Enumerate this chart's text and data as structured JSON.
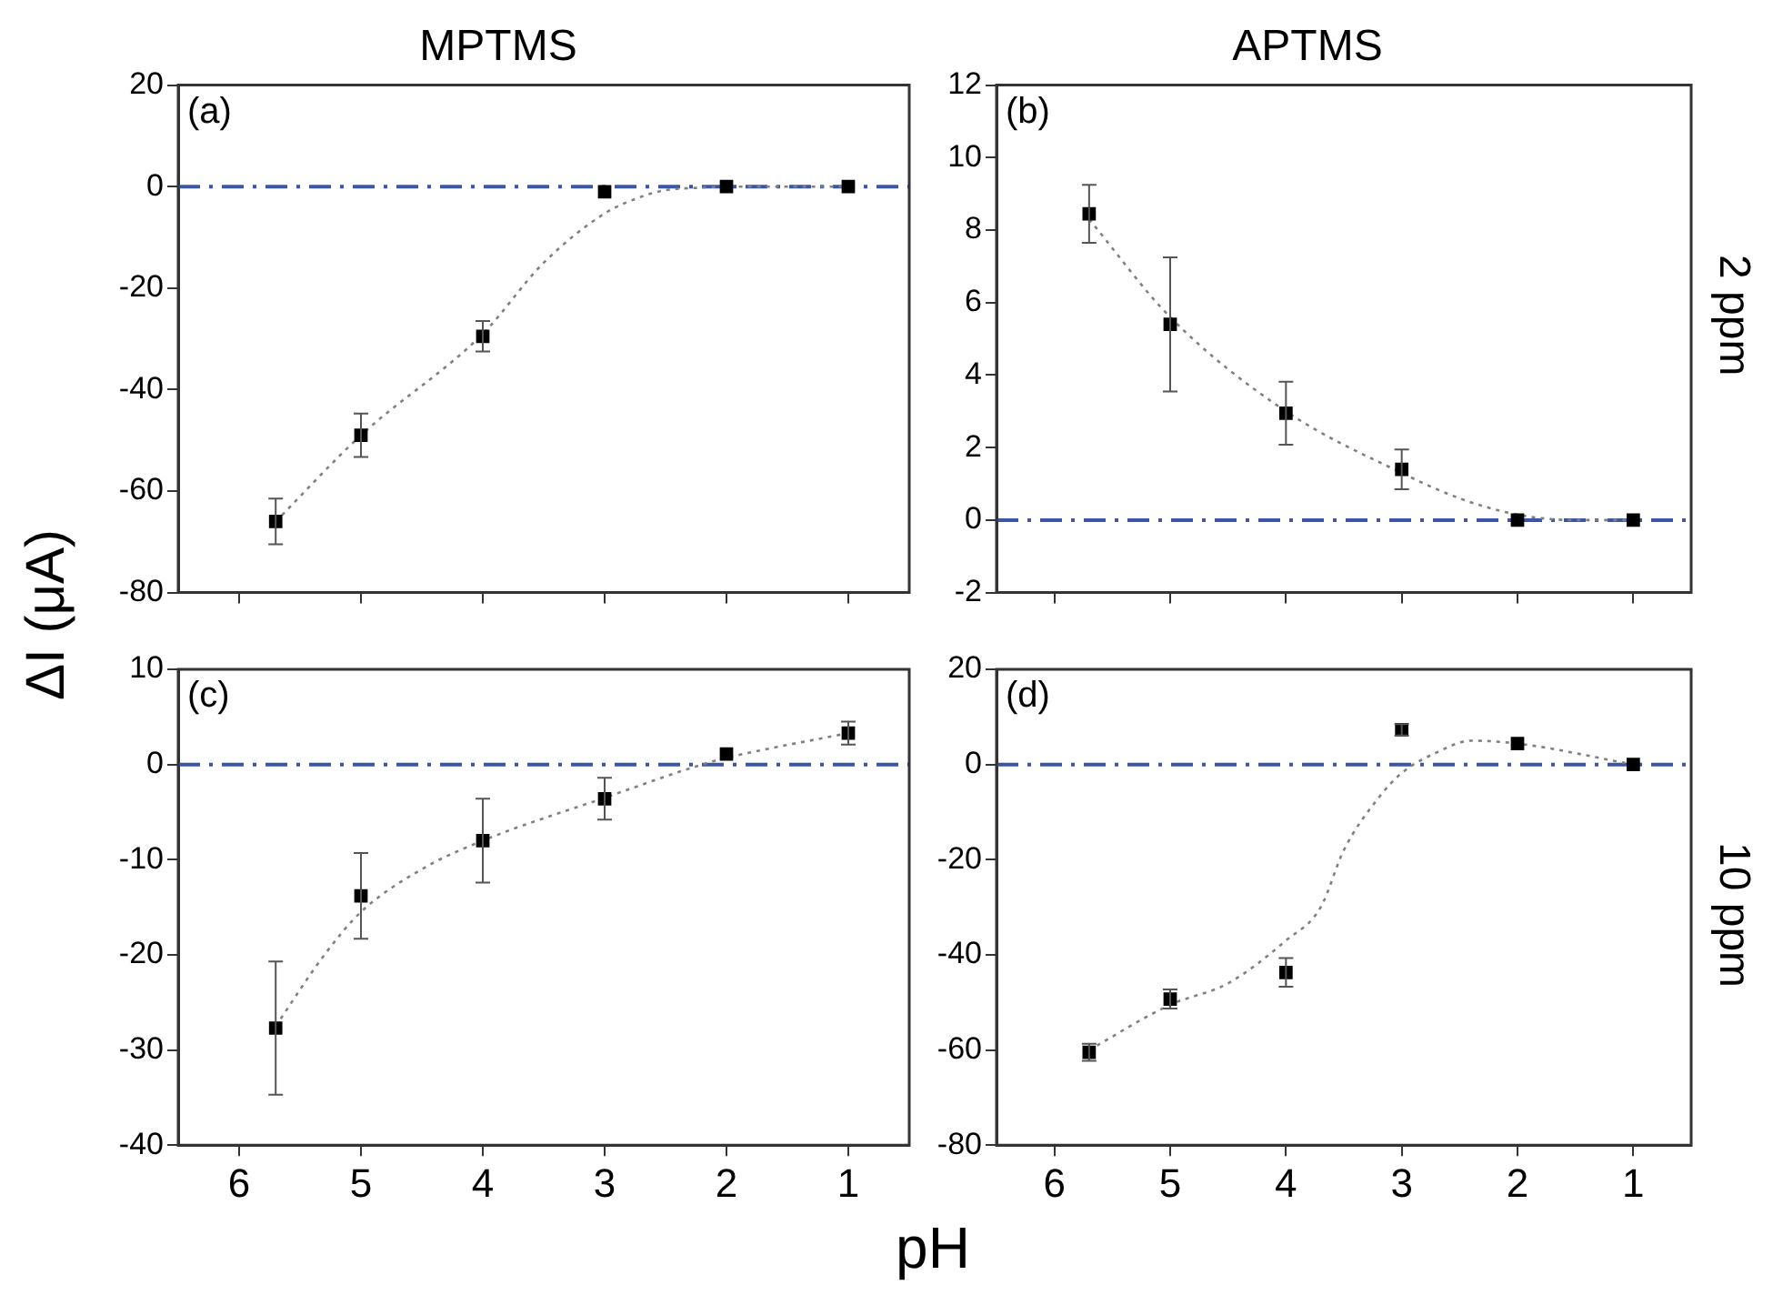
{
  "chart_data": [
    {
      "type": "scatter",
      "title": "MPTMS",
      "ylabel": "ΔI (μA)",
      "annotations": [
        "(a)"
      ],
      "x": [
        5.7,
        5,
        4,
        3,
        2,
        1
      ],
      "xlim": [
        6.5,
        0.5
      ],
      "xticks": [
        6,
        5,
        4,
        3,
        2,
        1
      ],
      "ylim": [
        -80,
        20
      ],
      "yticks": [
        -80,
        -60,
        -40,
        -20,
        0,
        20
      ],
      "tick_labels": "y",
      "ref_lines": [
        {
          "axis": "y",
          "value": 0,
          "color": "#3a56a8",
          "line_style": "dashed"
        }
      ],
      "series": [
        {
          "color": "#000000",
          "marker": "square",
          "values": [
            -66,
            -49,
            -29.5,
            -1,
            0,
            0
          ],
          "errors": [
            4.5,
            4.3,
            3,
            null,
            null,
            null
          ]
        },
        {
          "type": "line",
          "color": "#808080",
          "marker": "none",
          "line_style": "dotted",
          "x": [
            5.7,
            5,
            4,
            3.5,
            3,
            2.7,
            2.5,
            2.2,
            2,
            1.5,
            1
          ],
          "values": [
            -66,
            -49,
            -29,
            -15,
            -5.3,
            -2,
            -0.7,
            -0.2,
            0,
            0,
            0
          ]
        }
      ]
    },
    {
      "type": "scatter",
      "title": "APTMS",
      "y2label": "2 ppm",
      "annotations": [
        "(b)"
      ],
      "x": [
        5.7,
        5,
        4,
        3,
        2,
        1
      ],
      "xlim": [
        6.5,
        0.5
      ],
      "xticks": [
        6,
        5,
        4,
        3,
        2,
        1
      ],
      "ylim": [
        -2,
        12
      ],
      "yticks": [
        -2,
        0,
        2,
        4,
        6,
        8,
        10,
        12
      ],
      "tick_labels": "y",
      "ref_lines": [
        {
          "axis": "y",
          "value": 0,
          "color": "#3a56a8",
          "line_style": "dashed"
        }
      ],
      "series": [
        {
          "color": "#000000",
          "marker": "square",
          "values": [
            8.45,
            5.4,
            2.95,
            1.4,
            0,
            0
          ],
          "errors": [
            0.8,
            1.85,
            0.87,
            0.55,
            null,
            null
          ]
        },
        {
          "type": "line",
          "color": "#808080",
          "marker": "none",
          "line_style": "dotted",
          "x": [
            5.7,
            5,
            4,
            3,
            2.5,
            2,
            1.5,
            1
          ],
          "values": [
            8.3,
            5.6,
            3,
            1.3,
            0.6,
            0.15,
            0,
            0
          ]
        }
      ]
    },
    {
      "type": "scatter",
      "xlabel": "pH",
      "annotations": [
        "(c)"
      ],
      "x": [
        5.7,
        5,
        4,
        3,
        2,
        1
      ],
      "xlim": [
        6.5,
        0.5
      ],
      "xticks": [
        6,
        5,
        4,
        3,
        2,
        1
      ],
      "ylim": [
        -40,
        10
      ],
      "yticks": [
        -40,
        -30,
        -20,
        -10,
        0,
        10
      ],
      "ref_lines": [
        {
          "axis": "y",
          "value": 0,
          "color": "#3a56a8",
          "line_style": "dashed"
        }
      ],
      "series": [
        {
          "color": "#000000",
          "marker": "square",
          "values": [
            -27.7,
            -13.8,
            -8,
            -3.6,
            1.1,
            3.3
          ],
          "errors": [
            7,
            4.5,
            4.4,
            2.2,
            null,
            1.2
          ]
        },
        {
          "type": "line",
          "color": "#808080",
          "marker": "none",
          "line_style": "dotted",
          "x": [
            5.7,
            5.3,
            5,
            4.5,
            4,
            3,
            2.2,
            2,
            1
          ],
          "values": [
            -27.5,
            -20,
            -15.5,
            -11,
            -8,
            -3.5,
            0,
            0.7,
            3.3
          ]
        }
      ]
    },
    {
      "type": "scatter",
      "y2label": "10 ppm",
      "annotations": [
        "(d)"
      ],
      "x": [
        5.7,
        5,
        4,
        3,
        2,
        1
      ],
      "xlim": [
        6.5,
        0.5
      ],
      "xticks": [
        6,
        5,
        4,
        3,
        2,
        1
      ],
      "ylim": [
        -80,
        20
      ],
      "yticks": [
        -80,
        -60,
        -40,
        -20,
        0,
        20
      ],
      "ref_lines": [
        {
          "axis": "y",
          "value": 0,
          "color": "#3a56a8",
          "line_style": "dashed"
        }
      ],
      "series": [
        {
          "color": "#000000",
          "marker": "square",
          "values": [
            -60.5,
            -49.3,
            -43.7,
            7.3,
            4.4,
            0
          ],
          "errors": [
            1.8,
            2,
            3,
            1.2,
            null,
            null
          ]
        },
        {
          "type": "line",
          "color": "#808080",
          "marker": "none",
          "line_style": "dotted",
          "x": [
            5.7,
            5,
            4.5,
            4,
            3.7,
            3.5,
            3.2,
            3,
            2.7,
            2.4,
            2,
            1
          ],
          "values": [
            -60,
            -50.5,
            -46,
            -37,
            -30,
            -18,
            -7,
            -1.8,
            2.5,
            5,
            4.4,
            0
          ]
        }
      ]
    }
  ]
}
